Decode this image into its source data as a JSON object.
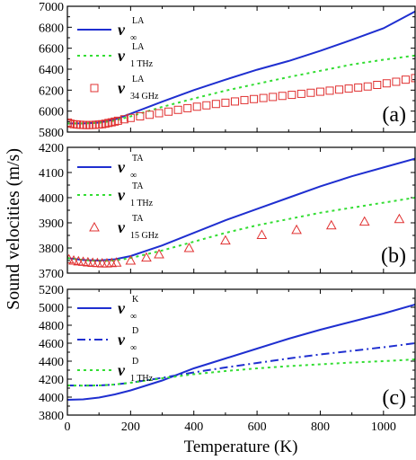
{
  "figure": {
    "ylabel": "Sound velocities (m/s)",
    "xlabel": "Temperature (K)"
  },
  "chart_data": [
    {
      "type": "line",
      "panel_label": "(a)",
      "xlim": [
        0,
        1100
      ],
      "ylim": [
        5800,
        7000
      ],
      "x_ticks": [
        0,
        200,
        400,
        600,
        800,
        1000
      ],
      "x_tick_labels": [
        "",
        "",
        "",
        "",
        "",
        ""
      ],
      "y_ticks": [
        5800,
        6000,
        6200,
        6400,
        6600,
        6800,
        7000
      ],
      "y_tick_labels": [
        "5800",
        "6000",
        "6200",
        "6400",
        "6600",
        "6800",
        "7000"
      ],
      "legend_position": "top-left",
      "series": [
        {
          "name": "v_∞^LA",
          "label_main": "v",
          "label_sup": "LA",
          "label_sub": "∞",
          "color": "#1f2fd0",
          "style": "solid",
          "marker": "none",
          "x": [
            0,
            50,
            100,
            150,
            200,
            300,
            400,
            500,
            600,
            700,
            800,
            900,
            1000,
            1100
          ],
          "y": [
            5882,
            5882,
            5890,
            5920,
            5975,
            6090,
            6200,
            6300,
            6395,
            6478,
            6575,
            6680,
            6790,
            6950
          ]
        },
        {
          "name": "v_1 THz^LA",
          "label_main": "v",
          "label_sup": "LA",
          "label_sub": "1 THz",
          "color": "#33dd33",
          "style": "dotted",
          "marker": "none",
          "x": [
            0,
            50,
            100,
            150,
            200,
            300,
            400,
            500,
            600,
            700,
            800,
            900,
            1000,
            1100
          ],
          "y": [
            5882,
            5882,
            5888,
            5910,
            5950,
            6040,
            6120,
            6195,
            6260,
            6325,
            6385,
            6445,
            6490,
            6530
          ]
        },
        {
          "name": "v_34 GHz^LA",
          "label_main": "v",
          "label_sup": "LA",
          "label_sub": "34 GHz",
          "color": "#e03030",
          "style": "none",
          "marker": "square",
          "x": [
            2,
            10,
            20,
            30,
            40,
            50,
            60,
            70,
            80,
            90,
            100,
            110,
            120,
            130,
            140,
            150,
            160,
            180,
            200,
            230,
            260,
            290,
            320,
            350,
            380,
            410,
            440,
            470,
            500,
            530,
            560,
            590,
            620,
            650,
            680,
            710,
            740,
            770,
            800,
            830,
            860,
            890,
            920,
            950,
            980,
            1010,
            1040,
            1070,
            1100
          ],
          "y": [
            5890,
            5880,
            5875,
            5872,
            5870,
            5868,
            5867,
            5867,
            5868,
            5870,
            5872,
            5875,
            5880,
            5887,
            5893,
            5900,
            5908,
            5922,
            5935,
            5950,
            5965,
            5980,
            5995,
            6012,
            6028,
            6042,
            6055,
            6068,
            6080,
            6092,
            6105,
            6115,
            6125,
            6135,
            6145,
            6155,
            6165,
            6175,
            6185,
            6195,
            6205,
            6215,
            6225,
            6235,
            6250,
            6265,
            6280,
            6300,
            6315
          ]
        }
      ]
    },
    {
      "type": "line",
      "panel_label": "(b)",
      "xlim": [
        0,
        1100
      ],
      "ylim": [
        3700,
        4200
      ],
      "x_ticks": [
        0,
        200,
        400,
        600,
        800,
        1000
      ],
      "x_tick_labels": [
        "",
        "",
        "",
        "",
        "",
        ""
      ],
      "y_ticks": [
        3700,
        3800,
        3900,
        4000,
        4100,
        4200
      ],
      "y_tick_labels": [
        "3700",
        "3800",
        "3900",
        "4000",
        "4100",
        "4200"
      ],
      "legend_position": "top-left",
      "series": [
        {
          "name": "v_∞^TA",
          "label_main": "v",
          "label_sup": "TA",
          "label_sub": "∞",
          "color": "#1f2fd0",
          "style": "solid",
          "marker": "none",
          "x": [
            0,
            50,
            100,
            150,
            200,
            300,
            400,
            500,
            600,
            700,
            800,
            900,
            1000,
            1100
          ],
          "y": [
            3760,
            3752,
            3750,
            3755,
            3768,
            3810,
            3860,
            3910,
            3955,
            4000,
            4045,
            4085,
            4120,
            4155
          ]
        },
        {
          "name": "v_1 THz^TA",
          "label_main": "v",
          "label_sup": "TA",
          "label_sub": "1 THz",
          "color": "#33dd33",
          "style": "dotted",
          "marker": "none",
          "x": [
            0,
            50,
            100,
            150,
            200,
            300,
            400,
            500,
            600,
            700,
            800,
            900,
            1000,
            1100
          ],
          "y": [
            3760,
            3752,
            3748,
            3750,
            3760,
            3790,
            3825,
            3860,
            3890,
            3915,
            3940,
            3960,
            3980,
            4000
          ]
        },
        {
          "name": "v_15 GHz^TA",
          "label_main": "v",
          "label_sup": "TA",
          "label_sub": "15 GHz",
          "color": "#e03030",
          "style": "none",
          "marker": "triangle",
          "x": [
            5,
            20,
            35,
            50,
            65,
            80,
            95,
            110,
            125,
            140,
            155,
            200,
            250,
            290,
            385,
            500,
            615,
            725,
            835,
            940,
            1050
          ],
          "y": [
            3755,
            3750,
            3747,
            3745,
            3743,
            3741,
            3740,
            3739,
            3739,
            3740,
            3742,
            3750,
            3762,
            3775,
            3800,
            3830,
            3852,
            3872,
            3890,
            3905,
            3915
          ]
        }
      ]
    },
    {
      "type": "line",
      "panel_label": "(c)",
      "xlim": [
        0,
        1100
      ],
      "ylim": [
        3800,
        5200
      ],
      "x_ticks": [
        0,
        200,
        400,
        600,
        800,
        1000
      ],
      "x_tick_labels": [
        "0",
        "200",
        "400",
        "600",
        "800",
        "1000"
      ],
      "y_ticks": [
        3800,
        4000,
        4200,
        4400,
        4600,
        4800,
        5000,
        5200
      ],
      "y_tick_labels": [
        "3800",
        "4000",
        "4200",
        "4400",
        "4600",
        "4800",
        "5000",
        "5200"
      ],
      "legend_position": "top-left",
      "series": [
        {
          "name": "v_∞^K",
          "label_main": "v",
          "label_sup": "K",
          "label_sub": "∞",
          "color": "#1f2fd0",
          "style": "solid",
          "marker": "none",
          "x": [
            0,
            50,
            100,
            150,
            200,
            250,
            300,
            400,
            500,
            600,
            700,
            800,
            900,
            1000,
            1100
          ],
          "y": [
            3970,
            3975,
            3995,
            4030,
            4075,
            4130,
            4185,
            4320,
            4430,
            4540,
            4650,
            4750,
            4840,
            4930,
            5030
          ]
        },
        {
          "name": "v_∞^D",
          "label_main": "v",
          "label_sup": "D",
          "label_sub": "∞",
          "color": "#1f2fd0",
          "style": "dashdot",
          "marker": "none",
          "x": [
            0,
            50,
            100,
            150,
            200,
            300,
            400,
            500,
            600,
            700,
            800,
            900,
            1000,
            1100
          ],
          "y": [
            4130,
            4128,
            4130,
            4140,
            4160,
            4215,
            4275,
            4330,
            4380,
            4430,
            4475,
            4515,
            4555,
            4600
          ]
        },
        {
          "name": "v_1 THz^D",
          "label_main": "v",
          "label_sup": "D",
          "label_sub": "1 THz",
          "color": "#33dd33",
          "style": "dotted",
          "marker": "none",
          "x": [
            0,
            50,
            100,
            150,
            200,
            300,
            400,
            500,
            600,
            700,
            800,
            900,
            1000,
            1100
          ],
          "y": [
            4130,
            4128,
            4130,
            4140,
            4160,
            4210,
            4255,
            4290,
            4320,
            4345,
            4365,
            4385,
            4400,
            4420
          ]
        }
      ]
    }
  ]
}
